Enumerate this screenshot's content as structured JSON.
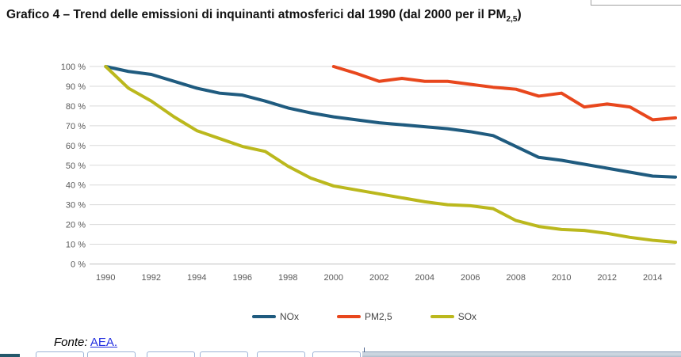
{
  "page": {
    "title_main": "Grafico 4 – Trend delle emissioni di inquinanti atmosferici dal 1990 (dal 2000 per il PM",
    "title_sub": "2,5",
    "title_close": ")"
  },
  "footer": {
    "label": "Fonte:",
    "link_text": "AEA",
    "period": "."
  },
  "chart_data": {
    "type": "line",
    "x": [
      1990,
      1991,
      1992,
      1993,
      1994,
      1995,
      1996,
      1997,
      1998,
      1999,
      2000,
      2001,
      2002,
      2003,
      2004,
      2005,
      2006,
      2007,
      2008,
      2009,
      2010,
      2011,
      2012,
      2013,
      2014,
      2015
    ],
    "series": [
      {
        "name": "NOx",
        "color": "#1f5b7f",
        "values": [
          100,
          97.5,
          96,
          92.5,
          89,
          86.5,
          85.5,
          82.5,
          79,
          76.5,
          74.5,
          73,
          71.5,
          70.5,
          69.5,
          68.5,
          67,
          65,
          59.5,
          54,
          52.5,
          50.5,
          48.5,
          46.5,
          44.5,
          44
        ]
      },
      {
        "name": "PM2,5",
        "color": "#e8471d",
        "values": [
          null,
          null,
          null,
          null,
          null,
          null,
          null,
          null,
          null,
          null,
          100,
          96.5,
          92.5,
          94,
          92.5,
          92.5,
          91,
          89.5,
          88.5,
          85,
          86.5,
          79.5,
          81,
          79.5,
          73,
          74
        ]
      },
      {
        "name": "SOx",
        "color": "#bbb81d",
        "values": [
          100,
          89,
          82.5,
          74.5,
          67.5,
          63.5,
          59.5,
          57,
          49.5,
          43.5,
          39.5,
          37.5,
          35.5,
          33.5,
          31.5,
          30,
          29.5,
          28,
          22,
          19,
          17.5,
          17,
          15.5,
          13.5,
          12,
          11
        ]
      }
    ],
    "title": "Trend delle emissioni di inquinanti atmosferici dal 1990 (dal 2000 per il PM2,5)",
    "xlabel": "",
    "ylabel": "",
    "ylim": [
      0,
      100
    ],
    "yticks": [
      0,
      10,
      20,
      30,
      40,
      50,
      60,
      70,
      80,
      90,
      100
    ],
    "ytick_suffix": " %",
    "xticks": [
      1990,
      1992,
      1994,
      1996,
      1998,
      2000,
      2002,
      2004,
      2006,
      2008,
      2010,
      2012,
      2014
    ],
    "grid": true,
    "legend_position": "bottom"
  },
  "colors": {
    "gridline": "#d9d9d9",
    "axis_line": "#bfbfbf",
    "tick_text": "#595959"
  }
}
